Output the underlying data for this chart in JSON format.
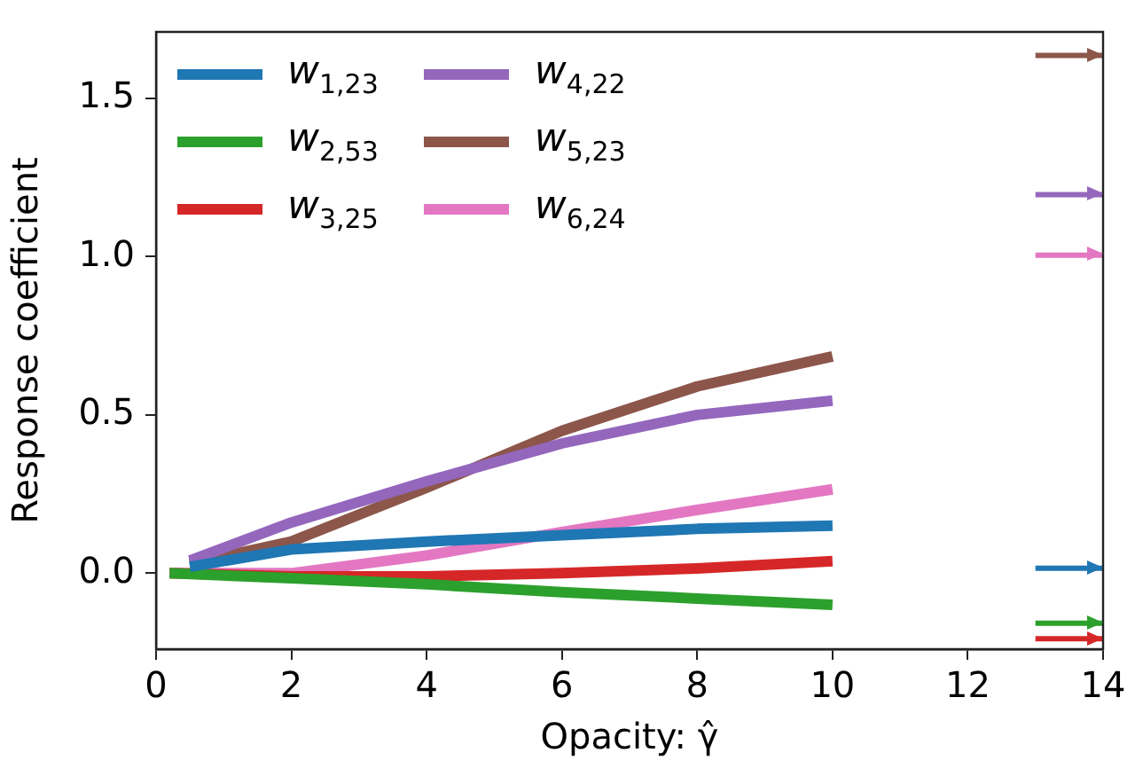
{
  "chart_data": {
    "type": "line",
    "xlabel": "Opacity: γ̂",
    "ylabel": "Response coefficient",
    "x": [
      0.5,
      2,
      4,
      6,
      8,
      10
    ],
    "series": [
      {
        "name": "w$_{1,23}$",
        "color": "#1f77b4",
        "values": [
          0.02,
          0.075,
          0.1,
          0.12,
          0.14,
          0.15
        ]
      },
      {
        "name": "w$_{2,53}$",
        "color": "#2ca02c",
        "x": [
          0.2,
          2,
          4,
          6,
          8,
          10
        ],
        "values": [
          0,
          -0.016,
          -0.035,
          -0.06,
          -0.08,
          -0.1
        ]
      },
      {
        "name": "w$_{3,25}$",
        "color": "#d62728",
        "x": [
          0.2,
          2,
          4,
          6,
          8,
          10
        ],
        "values": [
          0,
          -0.01,
          -0.01,
          0.0,
          0.015,
          0.038
        ]
      },
      {
        "name": "w$_{4,22}$",
        "color": "#9467bd",
        "values": [
          0.04,
          0.16,
          0.29,
          0.41,
          0.5,
          0.545
        ]
      },
      {
        "name": "w$_{5,23}$",
        "color": "#8c564b",
        "values": [
          0.03,
          0.1,
          0.27,
          0.45,
          0.59,
          0.685
        ]
      },
      {
        "name": "w$_{6,24}$",
        "color": "#e377c2",
        "x": [
          0.2,
          2,
          4,
          6,
          8,
          10
        ],
        "values": [
          0,
          0.0,
          0.056,
          0.13,
          0.2,
          0.265
        ]
      },
      {
        "color": "#8c564b",
        "x": [
          13,
          14
        ],
        "values": [
          1.636,
          1.636
        ]
      },
      {
        "color": "#9467bd",
        "x": [
          13,
          14
        ],
        "values": [
          1.196,
          1.196
        ]
      },
      {
        "color": "#e377c2",
        "x": [
          13,
          14
        ],
        "values": [
          1.005,
          1.005
        ]
      },
      {
        "color": "#1f77b4",
        "x": [
          13,
          14
        ],
        "values": [
          0.016,
          0.016
        ]
      },
      {
        "color": "#2ca02c",
        "x": [
          13,
          14
        ],
        "values": [
          -0.158,
          -0.158
        ]
      },
      {
        "color": "#d62728",
        "x": [
          13,
          14
        ],
        "values": [
          -0.207,
          -0.207
        ]
      }
    ],
    "xlim": [
      0,
      14
    ],
    "xticks": [
      0,
      2,
      4,
      6,
      8,
      10,
      12,
      14
    ],
    "ylim": [
      -0.24,
      1.71
    ],
    "yticks": [
      {
        "value": 0,
        "label": "0.0"
      },
      {
        "value": 0.5,
        "label": "0.5"
      },
      {
        "value": 1,
        "label": "1.0"
      },
      {
        "value": 1.5,
        "label": "1.5"
      }
    ],
    "grid": false,
    "legend": "top left",
    "marker": "none",
    "line_style": "solid"
  }
}
